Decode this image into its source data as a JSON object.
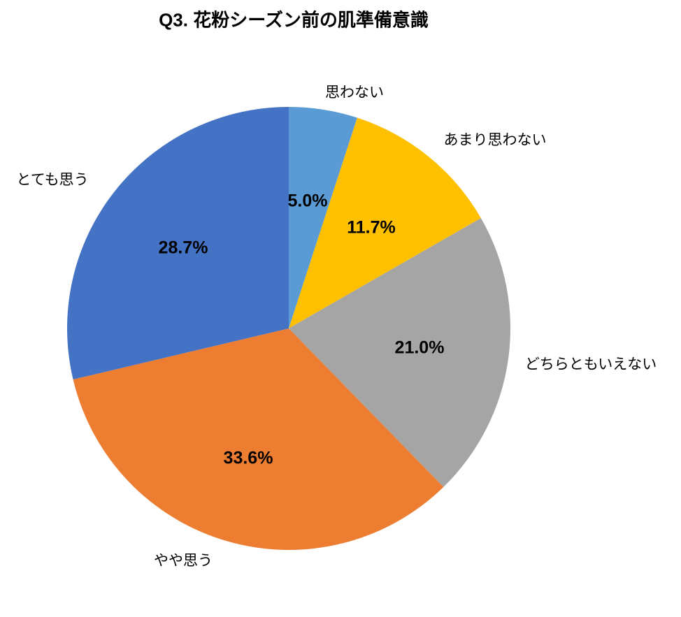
{
  "chart_data": {
    "type": "pie",
    "title": "Q3. 花粉シーズン前の肌準備意識",
    "start_angle_deg": 0,
    "direction": "clockwise",
    "legend_position": "none",
    "background_color": "#ffffff",
    "text_color": "#000000",
    "categories": [
      "思わない",
      "あまり思わない",
      "どちらともいえない",
      "やや思う",
      "とても思う"
    ],
    "values": [
      5.0,
      11.7,
      21.0,
      33.6,
      28.7
    ],
    "slices": [
      {
        "label": "思わない",
        "value": 5.0,
        "display": "5.0%",
        "color": "#5B9BD5"
      },
      {
        "label": "あまり思わない",
        "value": 11.7,
        "display": "11.7%",
        "color": "#FFC000"
      },
      {
        "label": "どちらともいえない",
        "value": 21.0,
        "display": "21.0%",
        "color": "#A5A5A5"
      },
      {
        "label": "やや思う",
        "value": 33.6,
        "display": "33.6%",
        "color": "#ED7D31"
      },
      {
        "label": "とても思う",
        "value": 28.7,
        "display": "28.7%",
        "color": "#4472C4"
      }
    ]
  }
}
